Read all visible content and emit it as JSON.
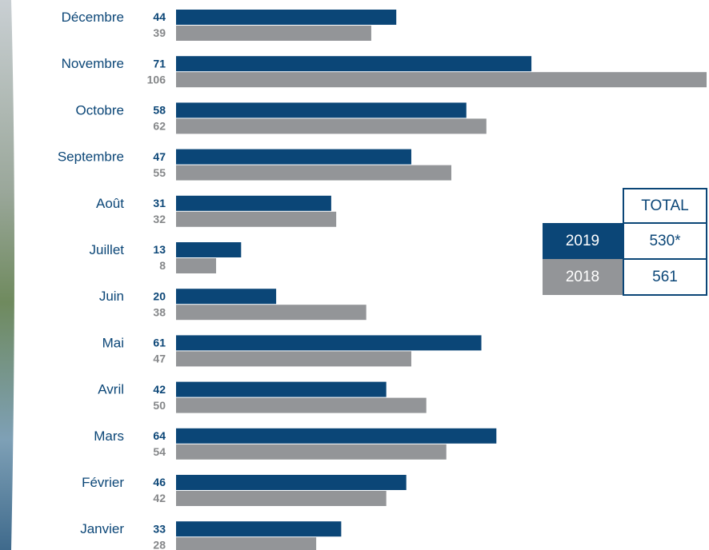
{
  "chart_data": {
    "type": "bar",
    "orientation": "horizontal",
    "categories": [
      "Décembre",
      "Novembre",
      "Octobre",
      "Septembre",
      "Août",
      "Juillet",
      "Juin",
      "Mai",
      "Avril",
      "Mars",
      "Février",
      "Janvier"
    ],
    "series": [
      {
        "name": "2019",
        "color": "#0b4677",
        "values": [
          44,
          71,
          58,
          47,
          31,
          13,
          20,
          61,
          42,
          64,
          46,
          33
        ],
        "total": 530,
        "total_label": "530*"
      },
      {
        "name": "2018",
        "color": "#939598",
        "values": [
          39,
          106,
          62,
          55,
          32,
          8,
          38,
          47,
          50,
          54,
          42,
          28
        ],
        "total": 561
      }
    ],
    "xlim": [
      0,
      106
    ],
    "total_header": "TOTAL"
  }
}
